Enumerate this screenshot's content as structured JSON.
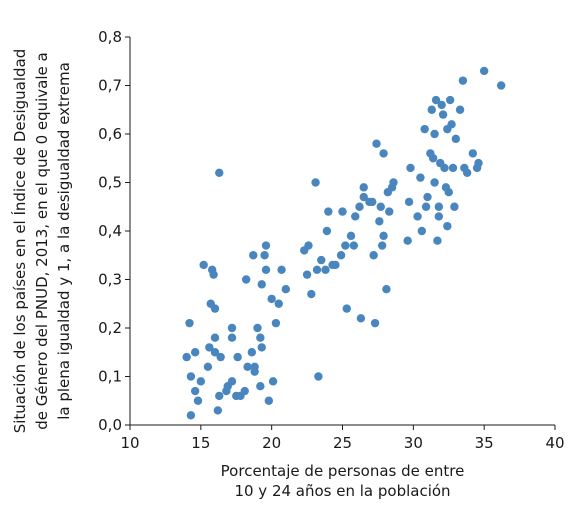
{
  "chart_data": {
    "type": "scatter",
    "xlabel_lines": [
      "Porcentaje de personas de entre",
      "10 y 24 años en la población"
    ],
    "ylabel_lines": [
      "Situación de los países en el Índice de Desigualdad",
      "de Género del PNUD, 2013, en el que 0 equivale a",
      "la plena igualdad y 1, a la desigualdad extrema"
    ],
    "xlim": [
      10,
      40
    ],
    "ylim": [
      0.0,
      0.8
    ],
    "x_ticks": [
      10,
      15,
      20,
      25,
      30,
      35,
      40
    ],
    "x_tick_labels": [
      "10",
      "15",
      "20",
      "25",
      "30",
      "35",
      "40"
    ],
    "y_ticks": [
      0.0,
      0.1,
      0.2,
      0.3,
      0.4,
      0.5,
      0.6,
      0.7,
      0.8
    ],
    "y_tick_labels": [
      "0,0",
      "0,1",
      "0,2",
      "0,3",
      "0,4",
      "0,5",
      "0,6",
      "0,7",
      "0,8"
    ],
    "grid": false,
    "marker_color": "#4a86be",
    "points": [
      [
        14.0,
        0.14
      ],
      [
        14.2,
        0.21
      ],
      [
        14.3,
        0.1
      ],
      [
        14.3,
        0.02
      ],
      [
        14.6,
        0.07
      ],
      [
        14.6,
        0.15
      ],
      [
        14.8,
        0.05
      ],
      [
        15.0,
        0.09
      ],
      [
        15.2,
        0.33
      ],
      [
        15.5,
        0.12
      ],
      [
        15.6,
        0.16
      ],
      [
        15.7,
        0.25
      ],
      [
        15.8,
        0.32
      ],
      [
        15.9,
        0.31
      ],
      [
        16.0,
        0.15
      ],
      [
        16.0,
        0.24
      ],
      [
        16.0,
        0.18
      ],
      [
        16.2,
        0.03
      ],
      [
        16.3,
        0.52
      ],
      [
        16.3,
        0.06
      ],
      [
        16.4,
        0.14
      ],
      [
        16.8,
        0.07
      ],
      [
        16.9,
        0.08
      ],
      [
        17.2,
        0.2
      ],
      [
        17.2,
        0.18
      ],
      [
        17.2,
        0.09
      ],
      [
        17.5,
        0.06
      ],
      [
        17.6,
        0.14
      ],
      [
        17.8,
        0.06
      ],
      [
        18.1,
        0.07
      ],
      [
        18.2,
        0.3
      ],
      [
        18.3,
        0.12
      ],
      [
        18.6,
        0.15
      ],
      [
        18.7,
        0.35
      ],
      [
        18.8,
        0.12
      ],
      [
        18.8,
        0.11
      ],
      [
        19.0,
        0.2
      ],
      [
        19.2,
        0.18
      ],
      [
        19.2,
        0.08
      ],
      [
        19.3,
        0.16
      ],
      [
        19.3,
        0.29
      ],
      [
        19.5,
        0.35
      ],
      [
        19.6,
        0.32
      ],
      [
        19.6,
        0.37
      ],
      [
        19.8,
        0.05
      ],
      [
        20.0,
        0.26
      ],
      [
        20.1,
        0.09
      ],
      [
        20.3,
        0.21
      ],
      [
        20.5,
        0.25
      ],
      [
        20.7,
        0.32
      ],
      [
        21.0,
        0.28
      ],
      [
        22.3,
        0.36
      ],
      [
        22.5,
        0.31
      ],
      [
        22.6,
        0.37
      ],
      [
        22.8,
        0.27
      ],
      [
        23.1,
        0.5
      ],
      [
        23.2,
        0.32
      ],
      [
        23.3,
        0.1
      ],
      [
        23.5,
        0.34
      ],
      [
        23.8,
        0.32
      ],
      [
        23.9,
        0.4
      ],
      [
        24.0,
        0.44
      ],
      [
        24.3,
        0.33
      ],
      [
        24.5,
        0.33
      ],
      [
        24.9,
        0.35
      ],
      [
        25.0,
        0.44
      ],
      [
        25.2,
        0.37
      ],
      [
        25.3,
        0.24
      ],
      [
        25.6,
        0.39
      ],
      [
        25.8,
        0.37
      ],
      [
        25.9,
        0.43
      ],
      [
        26.2,
        0.45
      ],
      [
        26.3,
        0.22
      ],
      [
        26.5,
        0.47
      ],
      [
        26.5,
        0.49
      ],
      [
        26.9,
        0.46
      ],
      [
        27.1,
        0.46
      ],
      [
        27.2,
        0.35
      ],
      [
        27.3,
        0.21
      ],
      [
        27.4,
        0.58
      ],
      [
        27.6,
        0.42
      ],
      [
        27.7,
        0.45
      ],
      [
        27.8,
        0.37
      ],
      [
        27.9,
        0.39
      ],
      [
        27.9,
        0.56
      ],
      [
        28.1,
        0.28
      ],
      [
        28.2,
        0.48
      ],
      [
        28.3,
        0.44
      ],
      [
        28.5,
        0.49
      ],
      [
        28.6,
        0.5
      ],
      [
        29.6,
        0.38
      ],
      [
        29.7,
        0.46
      ],
      [
        29.8,
        0.53
      ],
      [
        30.3,
        0.43
      ],
      [
        30.5,
        0.51
      ],
      [
        30.6,
        0.4
      ],
      [
        30.8,
        0.61
      ],
      [
        30.9,
        0.45
      ],
      [
        31.0,
        0.47
      ],
      [
        31.2,
        0.56
      ],
      [
        31.3,
        0.65
      ],
      [
        31.4,
        0.55
      ],
      [
        31.5,
        0.5
      ],
      [
        31.5,
        0.6
      ],
      [
        31.6,
        0.67
      ],
      [
        31.7,
        0.38
      ],
      [
        31.8,
        0.43
      ],
      [
        31.8,
        0.45
      ],
      [
        31.9,
        0.54
      ],
      [
        32.0,
        0.66
      ],
      [
        32.1,
        0.64
      ],
      [
        32.2,
        0.53
      ],
      [
        32.3,
        0.49
      ],
      [
        32.4,
        0.61
      ],
      [
        32.4,
        0.41
      ],
      [
        32.5,
        0.48
      ],
      [
        32.6,
        0.67
      ],
      [
        32.7,
        0.62
      ],
      [
        32.8,
        0.53
      ],
      [
        32.9,
        0.45
      ],
      [
        33.0,
        0.59
      ],
      [
        33.3,
        0.65
      ],
      [
        33.5,
        0.71
      ],
      [
        33.6,
        0.53
      ],
      [
        33.8,
        0.52
      ],
      [
        34.2,
        0.56
      ],
      [
        34.5,
        0.53
      ],
      [
        34.6,
        0.54
      ],
      [
        35.0,
        0.73
      ],
      [
        36.2,
        0.7
      ]
    ]
  }
}
